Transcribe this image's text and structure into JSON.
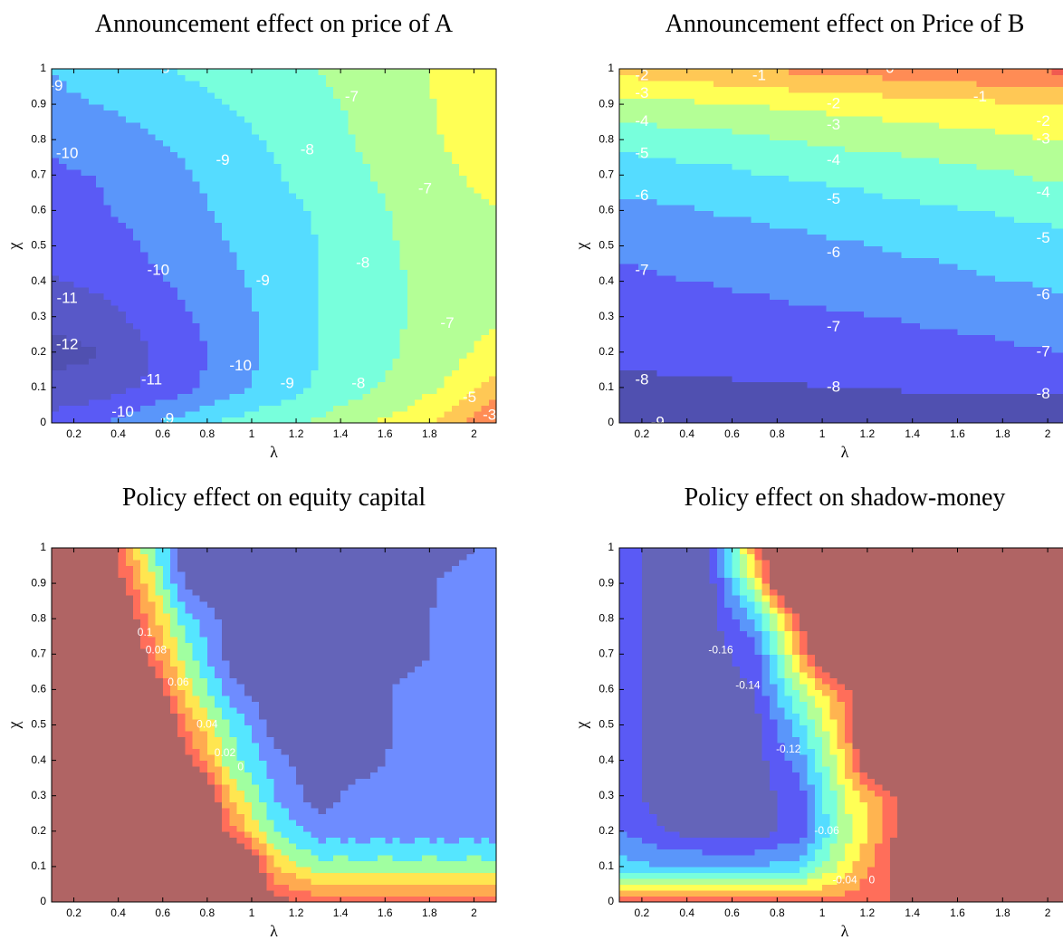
{
  "chart_data": [
    {
      "type": "contour",
      "title": "Announcement effect on price of A",
      "xlabel": "λ",
      "ylabel": "χ",
      "xlim": [
        0.1,
        2.1
      ],
      "ylim": [
        0,
        1
      ],
      "xticks": [
        0.2,
        0.4,
        0.6,
        0.8,
        1,
        1.2,
        1.4,
        1.6,
        1.8,
        2
      ],
      "yticks": [
        0,
        0.1,
        0.2,
        0.3,
        0.4,
        0.5,
        0.6,
        0.7,
        0.8,
        0.9,
        1
      ],
      "levels": [
        -12,
        -11,
        -10,
        -9,
        -8,
        -7,
        -6,
        -5,
        -4,
        -3
      ],
      "colors": [
        "#5050b0",
        "#5858c8",
        "#5a5af5",
        "#5a96fa",
        "#55dcff",
        "#78ffdc",
        "#b4ff96",
        "#ffff55",
        "#ffc855",
        "#ff8c55",
        "#f05a50"
      ],
      "x": [
        0.1,
        0.3,
        0.5,
        0.7,
        0.9,
        1.1,
        1.3,
        1.5,
        1.7,
        1.9,
        2.1
      ],
      "y": [
        0,
        0.1,
        0.2,
        0.3,
        0.4,
        0.5,
        0.6,
        0.7,
        0.8,
        0.9,
        1
      ],
      "z": [
        [
          -10.5,
          -10.2,
          -9.3,
          -8.5,
          -7.8,
          -7.3,
          -6.8,
          -6.2,
          -5.5,
          -4.5,
          -3
        ],
        [
          -11.8,
          -11.5,
          -11,
          -10.3,
          -9.4,
          -8.6,
          -7.9,
          -7.2,
          -6.6,
          -5.8,
          -4.5
        ],
        [
          -12.3,
          -12.1,
          -11.2,
          -10.4,
          -9.6,
          -8.7,
          -8,
          -7.4,
          -6.9,
          -6.3,
          -5.5
        ],
        [
          -11.8,
          -11.4,
          -10.8,
          -10.1,
          -9.5,
          -8.7,
          -8,
          -7.5,
          -7,
          -6.6,
          -6.2
        ],
        [
          -11.1,
          -10.8,
          -10.3,
          -9.8,
          -9.2,
          -8.6,
          -8,
          -7.5,
          -7,
          -6.7,
          -6.4
        ],
        [
          -10.6,
          -10.4,
          -10,
          -9.5,
          -9,
          -8.5,
          -8,
          -7.4,
          -6.9,
          -6.6,
          -6.3
        ],
        [
          -10.3,
          -10.1,
          -9.8,
          -9.3,
          -8.8,
          -8.3,
          -7.9,
          -7.3,
          -6.8,
          -6.4,
          -6
        ],
        [
          -10.1,
          -10,
          -9.6,
          -9.1,
          -8.6,
          -8.1,
          -7.6,
          -7.1,
          -6.6,
          -6.1,
          -5.6
        ],
        [
          -9.9,
          -9.6,
          -9.2,
          -8.8,
          -8.3,
          -7.9,
          -7.4,
          -6.9,
          -6.4,
          -5.9,
          -5.4
        ],
        [
          -9.2,
          -9,
          -8.7,
          -8.4,
          -8,
          -7.6,
          -7.2,
          -6.8,
          -6.3,
          -5.8,
          -5.4
        ],
        [
          -9,
          -8.6,
          -8.2,
          -7.9,
          -7.6,
          -7.3,
          -7,
          -6.6,
          -6.2,
          -5.8,
          -5.4
        ]
      ],
      "contour_labels": [
        {
          "x": 0.6,
          "y": 1.0,
          "value": -8
        },
        {
          "x": 1.45,
          "y": 0.92,
          "value": -7
        },
        {
          "x": 0.12,
          "y": 0.95,
          "value": -9
        },
        {
          "x": 0.17,
          "y": 0.76,
          "value": -10
        },
        {
          "x": 0.87,
          "y": 0.74,
          "value": -9
        },
        {
          "x": 1.25,
          "y": 0.77,
          "value": -8
        },
        {
          "x": 1.78,
          "y": 0.66,
          "value": -7
        },
        {
          "x": 0.58,
          "y": 0.43,
          "value": -10
        },
        {
          "x": 1.05,
          "y": 0.4,
          "value": -9
        },
        {
          "x": 1.5,
          "y": 0.45,
          "value": -8
        },
        {
          "x": 0.17,
          "y": 0.35,
          "value": -11
        },
        {
          "x": 0.17,
          "y": 0.22,
          "value": -12
        },
        {
          "x": 1.88,
          "y": 0.28,
          "value": -7
        },
        {
          "x": 0.95,
          "y": 0.16,
          "value": -10
        },
        {
          "x": 0.55,
          "y": 0.12,
          "value": -11
        },
        {
          "x": 1.16,
          "y": 0.11,
          "value": -9
        },
        {
          "x": 1.48,
          "y": 0.11,
          "value": -8
        },
        {
          "x": 1.98,
          "y": 0.07,
          "value": -5
        },
        {
          "x": 2.07,
          "y": 0.02,
          "value": -3
        },
        {
          "x": 0.42,
          "y": 0.03,
          "value": -10
        },
        {
          "x": 0.62,
          "y": 0.01,
          "value": -9
        }
      ]
    },
    {
      "type": "contour",
      "title": "Announcement effect on Price of B",
      "xlabel": "λ",
      "ylabel": "χ",
      "xlim": [
        0.1,
        2.1
      ],
      "ylim": [
        0,
        1
      ],
      "xticks": [
        0.2,
        0.4,
        0.6,
        0.8,
        1,
        1.2,
        1.4,
        1.6,
        1.8,
        2
      ],
      "yticks": [
        0,
        0.1,
        0.2,
        0.3,
        0.4,
        0.5,
        0.6,
        0.7,
        0.8,
        0.9,
        1
      ],
      "levels": [
        -9,
        -8,
        -7,
        -6,
        -5,
        -4,
        -3,
        -2,
        -1,
        0
      ],
      "colors": [
        "#5050b0",
        "#5050b0",
        "#5a5af5",
        "#5a96fa",
        "#55dcff",
        "#78ffdc",
        "#b4ff96",
        "#ffff55",
        "#ffc855",
        "#ff8c55",
        "#f05a50"
      ],
      "x": [
        0.1,
        0.6,
        1.1,
        1.6,
        2.1
      ],
      "y": [
        0,
        0.1,
        0.2,
        0.3,
        0.4,
        0.5,
        0.6,
        0.7,
        0.8,
        0.9,
        1
      ],
      "z": [
        [
          -9,
          -8.8,
          -8.5,
          -8.6,
          -8.6
        ],
        [
          -8.2,
          -8.1,
          -8,
          -7.9,
          -7.8
        ],
        [
          -7.8,
          -7.7,
          -7.5,
          -7.3,
          -7
        ],
        [
          -7.5,
          -7.3,
          -7.1,
          -6.8,
          -6.4
        ],
        [
          -7.2,
          -6.9,
          -6.6,
          -6.2,
          -5.8
        ],
        [
          -6.8,
          -6.5,
          -6.1,
          -5.7,
          -5.3
        ],
        [
          -6.3,
          -5.9,
          -5.5,
          -5.1,
          -4.6
        ],
        [
          -5.6,
          -5.2,
          -4.7,
          -4.3,
          -3.8
        ],
        [
          -4.7,
          -4.3,
          -3.8,
          -3.4,
          -2.9
        ],
        [
          -3.4,
          -3,
          -2.6,
          -2.3,
          -1.9
        ],
        [
          -1.6,
          -1.1,
          -0.6,
          -0.2,
          0.3
        ]
      ],
      "contour_labels": [
        {
          "x": 0.2,
          "y": 0.98,
          "value": -2
        },
        {
          "x": 0.2,
          "y": 0.93,
          "value": -3
        },
        {
          "x": 0.2,
          "y": 0.85,
          "value": -4
        },
        {
          "x": 0.2,
          "y": 0.76,
          "value": -5
        },
        {
          "x": 0.2,
          "y": 0.64,
          "value": -6
        },
        {
          "x": 0.2,
          "y": 0.43,
          "value": -7
        },
        {
          "x": 0.2,
          "y": 0.12,
          "value": -8
        },
        {
          "x": 0.27,
          "y": 0.0,
          "value": -9
        },
        {
          "x": 0.72,
          "y": 0.98,
          "value": -1
        },
        {
          "x": 1.3,
          "y": 1.0,
          "value": 0
        },
        {
          "x": 1.05,
          "y": 0.9,
          "value": -2
        },
        {
          "x": 1.05,
          "y": 0.84,
          "value": -3
        },
        {
          "x": 1.05,
          "y": 0.74,
          "value": -4
        },
        {
          "x": 1.05,
          "y": 0.63,
          "value": -5
        },
        {
          "x": 1.05,
          "y": 0.48,
          "value": -6
        },
        {
          "x": 1.05,
          "y": 0.27,
          "value": -7
        },
        {
          "x": 1.05,
          "y": 0.1,
          "value": -8
        },
        {
          "x": 1.7,
          "y": 0.92,
          "value": -1
        },
        {
          "x": 1.98,
          "y": 0.85,
          "value": -2
        },
        {
          "x": 1.98,
          "y": 0.8,
          "value": -3
        },
        {
          "x": 1.98,
          "y": 0.65,
          "value": -4
        },
        {
          "x": 1.98,
          "y": 0.52,
          "value": -5
        },
        {
          "x": 1.98,
          "y": 0.36,
          "value": -6
        },
        {
          "x": 1.98,
          "y": 0.2,
          "value": -7
        },
        {
          "x": 1.98,
          "y": 0.08,
          "value": -8
        }
      ]
    },
    {
      "type": "contour",
      "title": "Policy effect on equity capital",
      "xlabel": "λ",
      "ylabel": "χ",
      "xlim": [
        0.1,
        2.1
      ],
      "ylim": [
        0,
        1
      ],
      "xticks": [
        0.2,
        0.4,
        0.6,
        0.8,
        1,
        1.2,
        1.4,
        1.6,
        1.8,
        2
      ],
      "yticks": [
        0,
        0.1,
        0.2,
        0.3,
        0.4,
        0.5,
        0.6,
        0.7,
        0.8,
        0.9,
        1
      ],
      "levels": [
        -0.02,
        0,
        0.02,
        0.04,
        0.06,
        0.08,
        0.1
      ],
      "colors": [
        "#6464b9",
        "#6e8cff",
        "#55e6ff",
        "#a0ffa0",
        "#ffe650",
        "#ffaa50",
        "#ff6e5a",
        "#b06464"
      ],
      "x": [
        0.1,
        0.3,
        0.5,
        0.7,
        0.9,
        1.1,
        1.3,
        1.5,
        1.7,
        1.9,
        2.1
      ],
      "y": [
        0,
        0.1,
        0.2,
        0.3,
        0.4,
        0.5,
        0.6,
        0.7,
        0.8,
        0.9,
        1
      ],
      "z": [
        [
          0.2,
          0.2,
          0.2,
          0.2,
          0.2,
          0.11,
          0.09,
          0.09,
          0.09,
          0.09,
          0.09
        ],
        [
          0.2,
          0.2,
          0.2,
          0.2,
          0.2,
          0.06,
          0.03,
          0.03,
          0.03,
          0.03,
          0.03
        ],
        [
          0.2,
          0.2,
          0.2,
          0.2,
          0.09,
          0.02,
          -0.01,
          -0.01,
          -0.01,
          -0.01,
          -0.01
        ],
        [
          0.2,
          0.2,
          0.2,
          0.2,
          0.06,
          0,
          -0.03,
          -0.01,
          -0.01,
          -0.01,
          -0.01
        ],
        [
          0.2,
          0.2,
          0.2,
          0.11,
          0.03,
          -0.01,
          -0.04,
          -0.03,
          -0.01,
          -0.01,
          -0.01
        ],
        [
          0.2,
          0.2,
          0.2,
          0.08,
          0.02,
          -0.03,
          -0.04,
          -0.04,
          -0.01,
          -0.01,
          -0.01
        ],
        [
          0.2,
          0.2,
          0.15,
          0.05,
          -0.01,
          -0.04,
          -0.04,
          -0.04,
          -0.01,
          -0.01,
          -0.01
        ],
        [
          0.2,
          0.2,
          0.11,
          0.03,
          -0.03,
          -0.04,
          -0.04,
          -0.04,
          -0.03,
          -0.01,
          -0.01
        ],
        [
          0.2,
          0.2,
          0.09,
          0.01,
          -0.03,
          -0.04,
          -0.04,
          -0.04,
          -0.03,
          -0.01,
          -0.01
        ],
        [
          0.2,
          0.15,
          0.07,
          -0.025,
          -0.04,
          -0.04,
          -0.04,
          -0.04,
          -0.04,
          -0.01,
          -0.01
        ],
        [
          0.2,
          0.15,
          0.04,
          -0.03,
          -0.04,
          -0.04,
          -0.04,
          -0.04,
          -0.04,
          -0.03,
          -0.01
        ]
      ],
      "contour_labels": [
        {
          "x": 0.52,
          "y": 0.76,
          "value": 0.1
        },
        {
          "x": 0.57,
          "y": 0.71,
          "value": 0.08
        },
        {
          "x": 0.67,
          "y": 0.62,
          "value": 0.06
        },
        {
          "x": 0.8,
          "y": 0.5,
          "value": 0.04
        },
        {
          "x": 0.88,
          "y": 0.42,
          "value": 0.02
        },
        {
          "x": 0.95,
          "y": 0.38,
          "value": 0
        }
      ]
    },
    {
      "type": "contour",
      "title": "Policy effect on shadow-money",
      "xlabel": "λ",
      "ylabel": "χ",
      "xlim": [
        0.1,
        2.1
      ],
      "ylim": [
        0,
        1
      ],
      "xticks": [
        0.2,
        0.4,
        0.6,
        0.8,
        1,
        1.2,
        1.4,
        1.6,
        1.8,
        2
      ],
      "yticks": [
        0,
        0.1,
        0.2,
        0.3,
        0.4,
        0.5,
        0.6,
        0.7,
        0.8,
        0.9,
        1
      ],
      "levels": [
        -0.16,
        -0.14,
        -0.12,
        -0.1,
        -0.08,
        -0.06,
        -0.04,
        -0.02,
        0
      ],
      "colors": [
        "#6464b9",
        "#5a5af5",
        "#5a96fa",
        "#55dcff",
        "#78ffdc",
        "#b4ff96",
        "#ffff55",
        "#ffb450",
        "#ff6e5a",
        "#b06464"
      ],
      "x": [
        0.1,
        0.3,
        0.5,
        0.7,
        0.9,
        1.1,
        1.3,
        1.5,
        1.7,
        1.9,
        2.1
      ],
      "y": [
        0,
        0.1,
        0.2,
        0.3,
        0.4,
        0.5,
        0.6,
        0.7,
        0.8,
        0.9,
        1
      ],
      "z": [
        [
          -0.01,
          -0.01,
          -0.01,
          -0.01,
          -0.01,
          -0.01,
          0,
          0.1,
          0.1,
          0.1,
          0.1
        ],
        [
          -0.11,
          -0.12,
          -0.12,
          -0.12,
          -0.11,
          -0.05,
          0,
          0.1,
          0.1,
          0.1,
          0.1
        ],
        [
          -0.14,
          -0.16,
          -0.17,
          -0.17,
          -0.15,
          -0.07,
          -0.01,
          0.1,
          0.1,
          0.1,
          0.1
        ],
        [
          -0.15,
          -0.17,
          -0.17,
          -0.17,
          -0.15,
          -0.06,
          -0.01,
          0.1,
          0.1,
          0.1,
          0.1
        ],
        [
          -0.15,
          -0.17,
          -0.17,
          -0.17,
          -0.13,
          -0.04,
          0.1,
          0.1,
          0.1,
          0.1,
          0.1
        ],
        [
          -0.15,
          -0.17,
          -0.17,
          -0.17,
          -0.11,
          -0.02,
          0.1,
          0.1,
          0.1,
          0.1,
          0.1
        ],
        [
          -0.15,
          -0.17,
          -0.17,
          -0.16,
          -0.07,
          -0.01,
          0.1,
          0.1,
          0.1,
          0.1,
          0.1
        ],
        [
          -0.15,
          -0.17,
          -0.17,
          -0.15,
          -0.03,
          0.1,
          0.1,
          0.1,
          0.1,
          0.1,
          0.1
        ],
        [
          -0.15,
          -0.17,
          -0.17,
          -0.12,
          0,
          0.1,
          0.1,
          0.1,
          0.1,
          0.1,
          0.1
        ],
        [
          -0.15,
          -0.17,
          -0.17,
          -0.06,
          0.1,
          0.1,
          0.1,
          0.1,
          0.1,
          0.1,
          0.1
        ],
        [
          -0.15,
          -0.17,
          -0.16,
          -0.02,
          0.1,
          0.1,
          0.1,
          0.1,
          0.1,
          0.1,
          0.1
        ]
      ],
      "contour_labels": [
        {
          "x": 0.55,
          "y": 0.71,
          "value": -0.16
        },
        {
          "x": 0.67,
          "y": 0.61,
          "value": -0.14
        },
        {
          "x": 0.85,
          "y": 0.43,
          "value": -0.12
        },
        {
          "x": 1.02,
          "y": 0.2,
          "value": -0.06
        },
        {
          "x": 1.1,
          "y": 0.06,
          "value": -0.04
        },
        {
          "x": 1.22,
          "y": 0.06,
          "value": 0
        }
      ]
    }
  ]
}
